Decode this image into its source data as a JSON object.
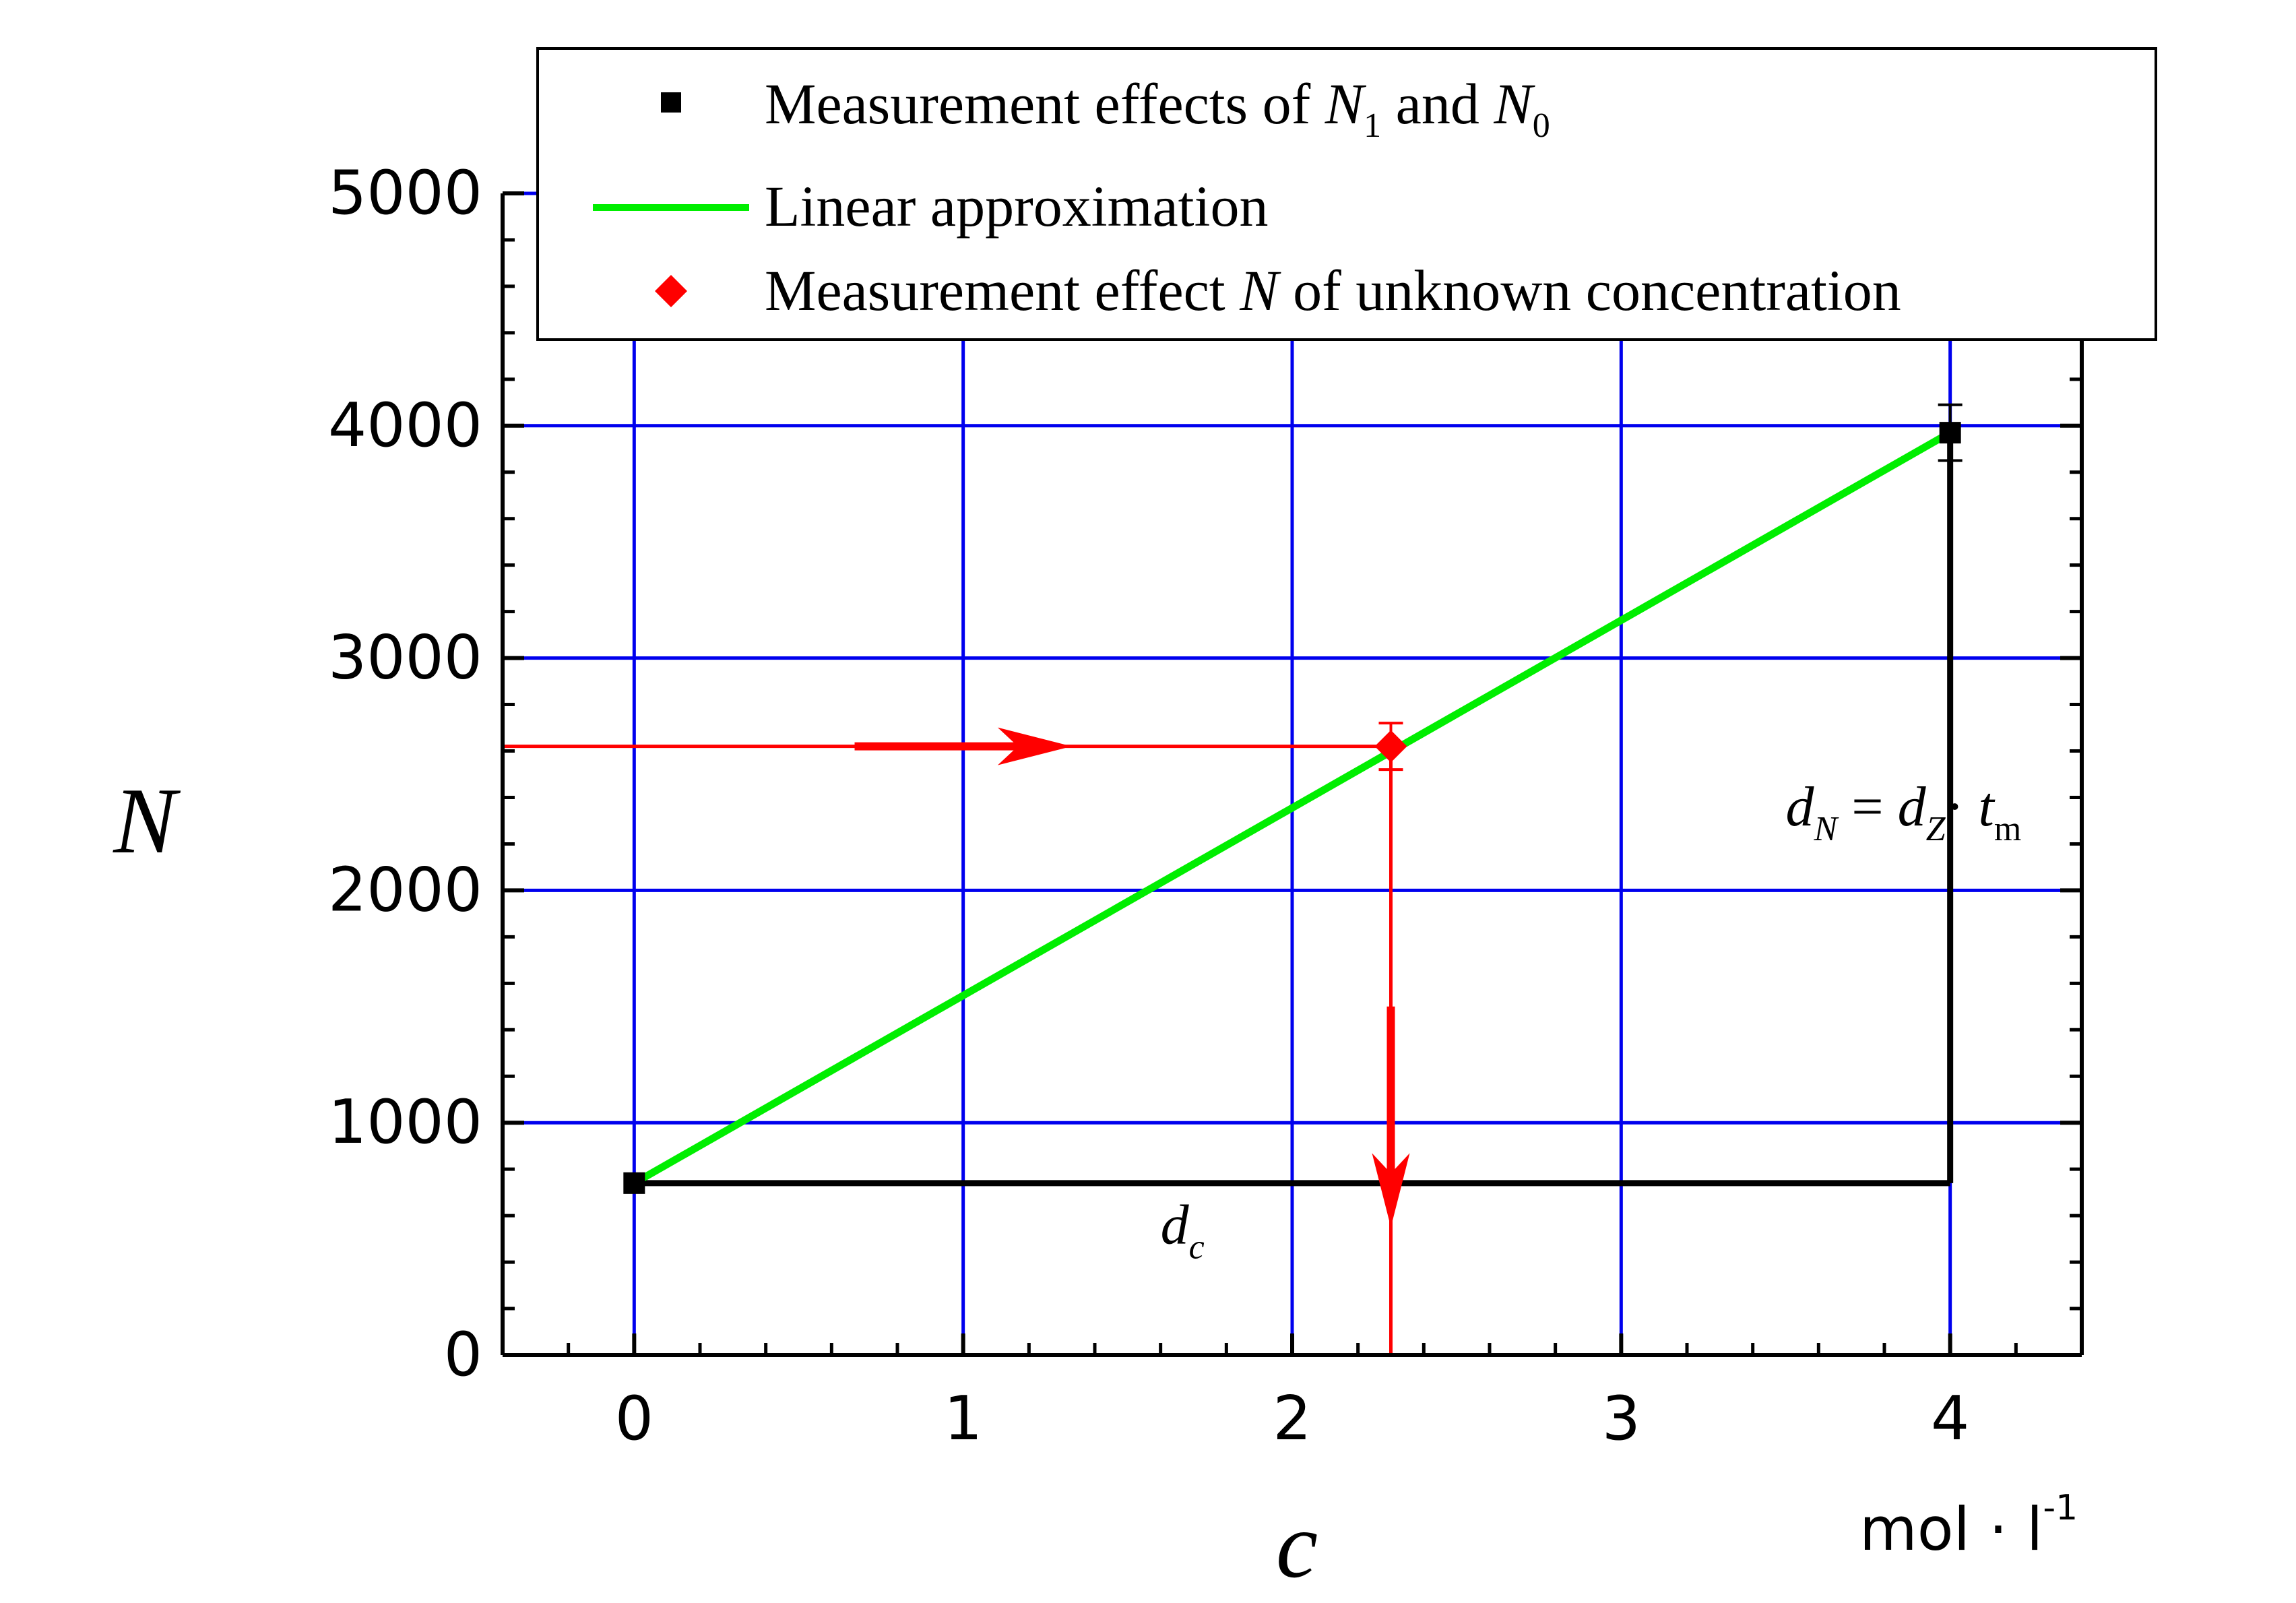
{
  "chart_data": {
    "type": "scatter",
    "xlabel": "c",
    "xunit": "mol · l",
    "xunit_exp": "-1",
    "ylabel": "N",
    "xlim": [
      -0.4,
      4.4
    ],
    "ylim": [
      0,
      5000
    ],
    "x_ticks": [
      "0",
      "1",
      "2",
      "3",
      "4"
    ],
    "x_tick_values": [
      0,
      1,
      2,
      3,
      4
    ],
    "y_ticks": [
      "0",
      "1000",
      "2000",
      "3000",
      "4000",
      "5000"
    ],
    "y_tick_values": [
      0,
      1000,
      2000,
      3000,
      4000,
      5000
    ],
    "grid": true,
    "grid_color": "#0000ee",
    "legend_position": "top",
    "series": [
      {
        "name": "Measurement effects of N1 and N0",
        "legend": {
          "main": "Measurement effects of ",
          "v1": "N",
          "s1": "1",
          "mid": " and ",
          "v2": "N",
          "s2": "0"
        },
        "kind": "points",
        "marker": "square",
        "color": "#000000",
        "x": [
          0,
          4
        ],
        "y": [
          740,
          3970
        ],
        "y_error": [
          0,
          120
        ]
      },
      {
        "name": "Linear approximation",
        "legend": {
          "main": "Linear approximation"
        },
        "kind": "line",
        "color": "#00ee00",
        "x": [
          0,
          4
        ],
        "y": [
          740,
          3970
        ]
      },
      {
        "name": "Measurement effect N of unknown concentration",
        "legend": {
          "main": "Measurement effect ",
          "v1": "N",
          "rest": " of unknown concentration"
        },
        "kind": "points",
        "marker": "diamond",
        "color": "#ff0000",
        "x": [
          2.3
        ],
        "y": [
          2620
        ],
        "y_error": [
          100
        ]
      }
    ],
    "annotations": {
      "construction_color": "#ff0000",
      "construction_horizontal_y": 2620,
      "construction_vertical_x": 2.3,
      "baseline_color": "#000000",
      "baseline_y": 740,
      "dc": {
        "d": "d",
        "sub": "c",
        "x": 1.6,
        "y": 480
      },
      "dn": {
        "d1": "d",
        "s1": "N",
        "eq": " = ",
        "d2": "d",
        "s2": "Z",
        "dot": "· ",
        "t": "t",
        "s3": "m",
        "x": 3.5,
        "y": 2280
      }
    }
  }
}
